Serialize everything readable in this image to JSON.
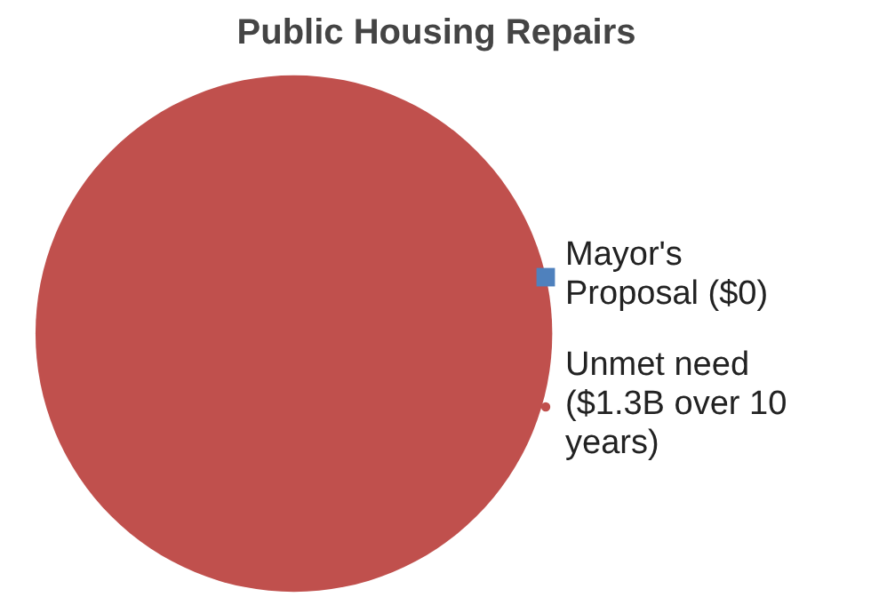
{
  "chart_data": {
    "type": "pie",
    "title": "Public Housing Repairs",
    "categories": [
      "Mayor's Proposal ($0)",
      "Unmet need ($1.3B over 10 years)"
    ],
    "values": [
      0,
      100
    ],
    "colors": [
      "#4f81bd",
      "#c0504d"
    ],
    "legend": "right"
  }
}
